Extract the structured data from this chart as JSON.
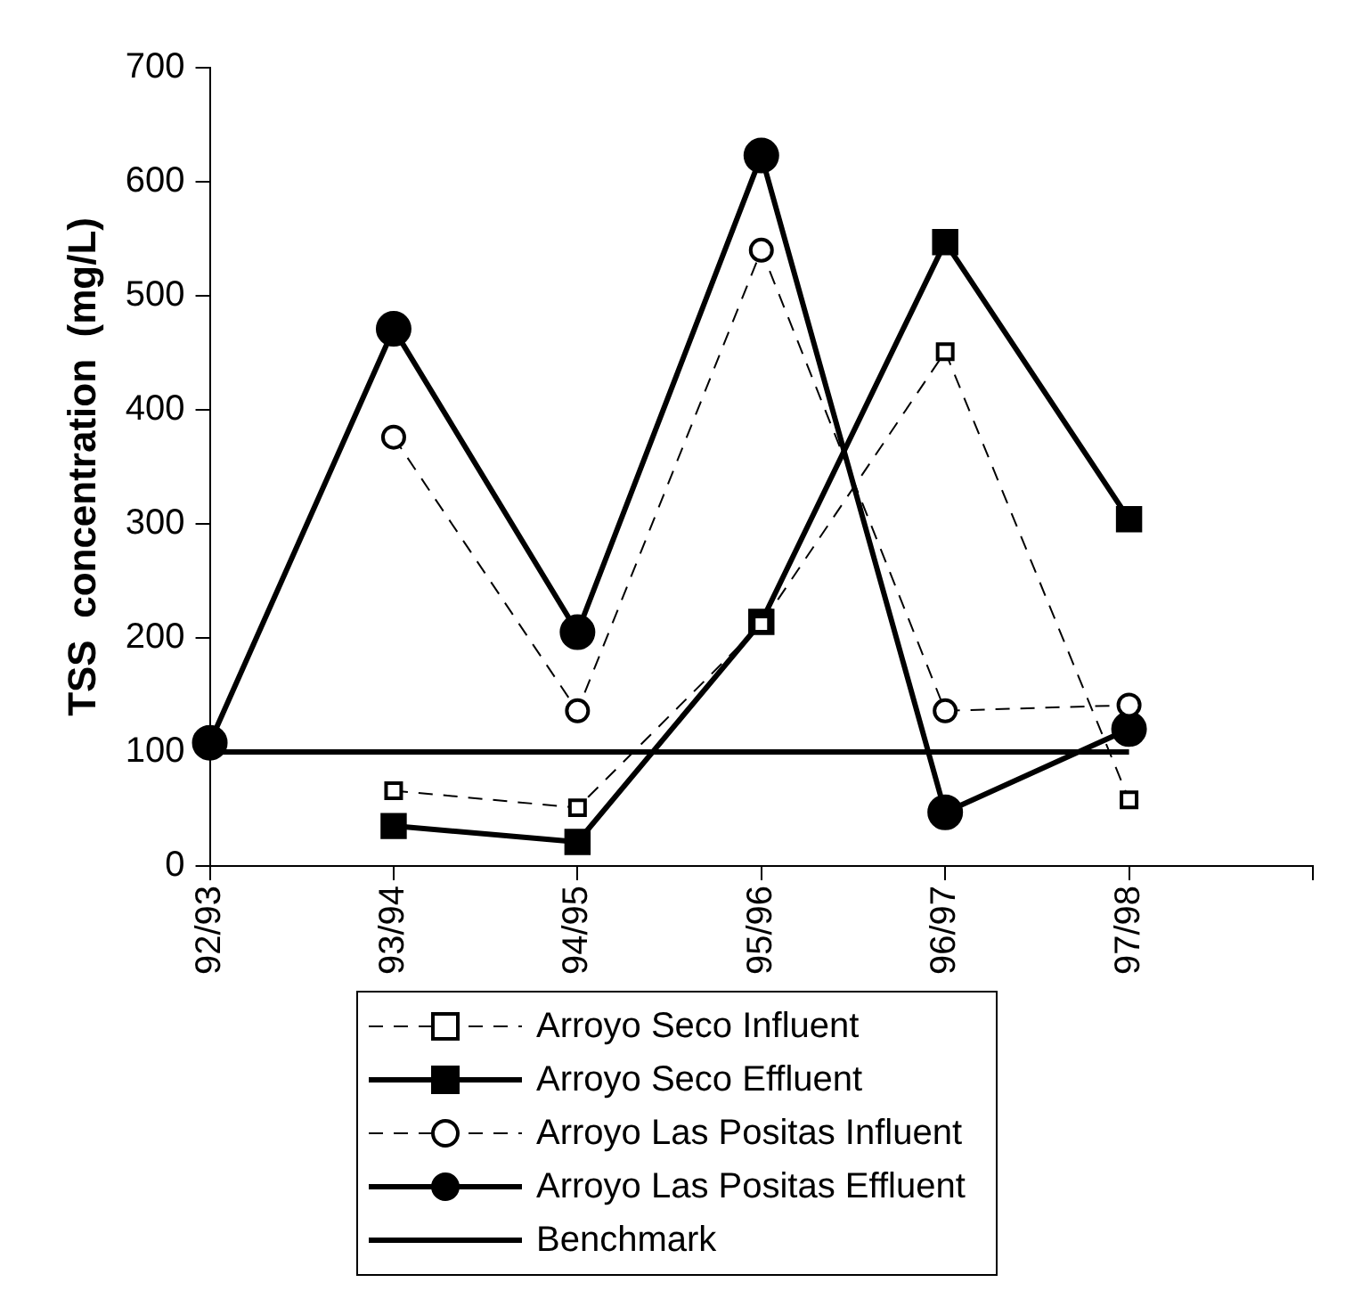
{
  "chart_data": {
    "type": "line",
    "ylabel": "TSS  concentration  (mg/L)",
    "categories": [
      "92/93",
      "93/94",
      "94/95",
      "95/96",
      "96/97",
      "97/98",
      null
    ],
    "ylim": [
      0,
      700
    ],
    "yticks": [
      0,
      100,
      200,
      300,
      400,
      500,
      600,
      700
    ],
    "grid": false,
    "legend": "bottom",
    "series": [
      {
        "name": "Arroyo Seco Influent",
        "color": "#000000",
        "marker": "square",
        "line_style": "dashed",
        "values": [
          null,
          66,
          51,
          212,
          451,
          58,
          null
        ]
      },
      {
        "name": "Arroyo Seco Effluent",
        "color": "#000000",
        "marker": "square",
        "line_style": "solid",
        "values": [
          null,
          35,
          21,
          214,
          547,
          304,
          null
        ]
      },
      {
        "name": "Arroyo Las Positas Influent",
        "color": "#000000",
        "marker": "circle",
        "line_style": "dashed",
        "values": [
          null,
          376,
          136,
          540,
          136,
          141,
          null
        ]
      },
      {
        "name": "Arroyo Las Positas Effluent",
        "color": "#000000",
        "marker": "circle",
        "line_style": "solid",
        "values": [
          108,
          471,
          205,
          623,
          47,
          120,
          null
        ]
      },
      {
        "name": "Benchmark",
        "color": "#000000",
        "marker": "none",
        "line_style": "solid",
        "values": [
          100,
          100,
          100,
          100,
          100,
          100,
          null
        ]
      }
    ]
  }
}
